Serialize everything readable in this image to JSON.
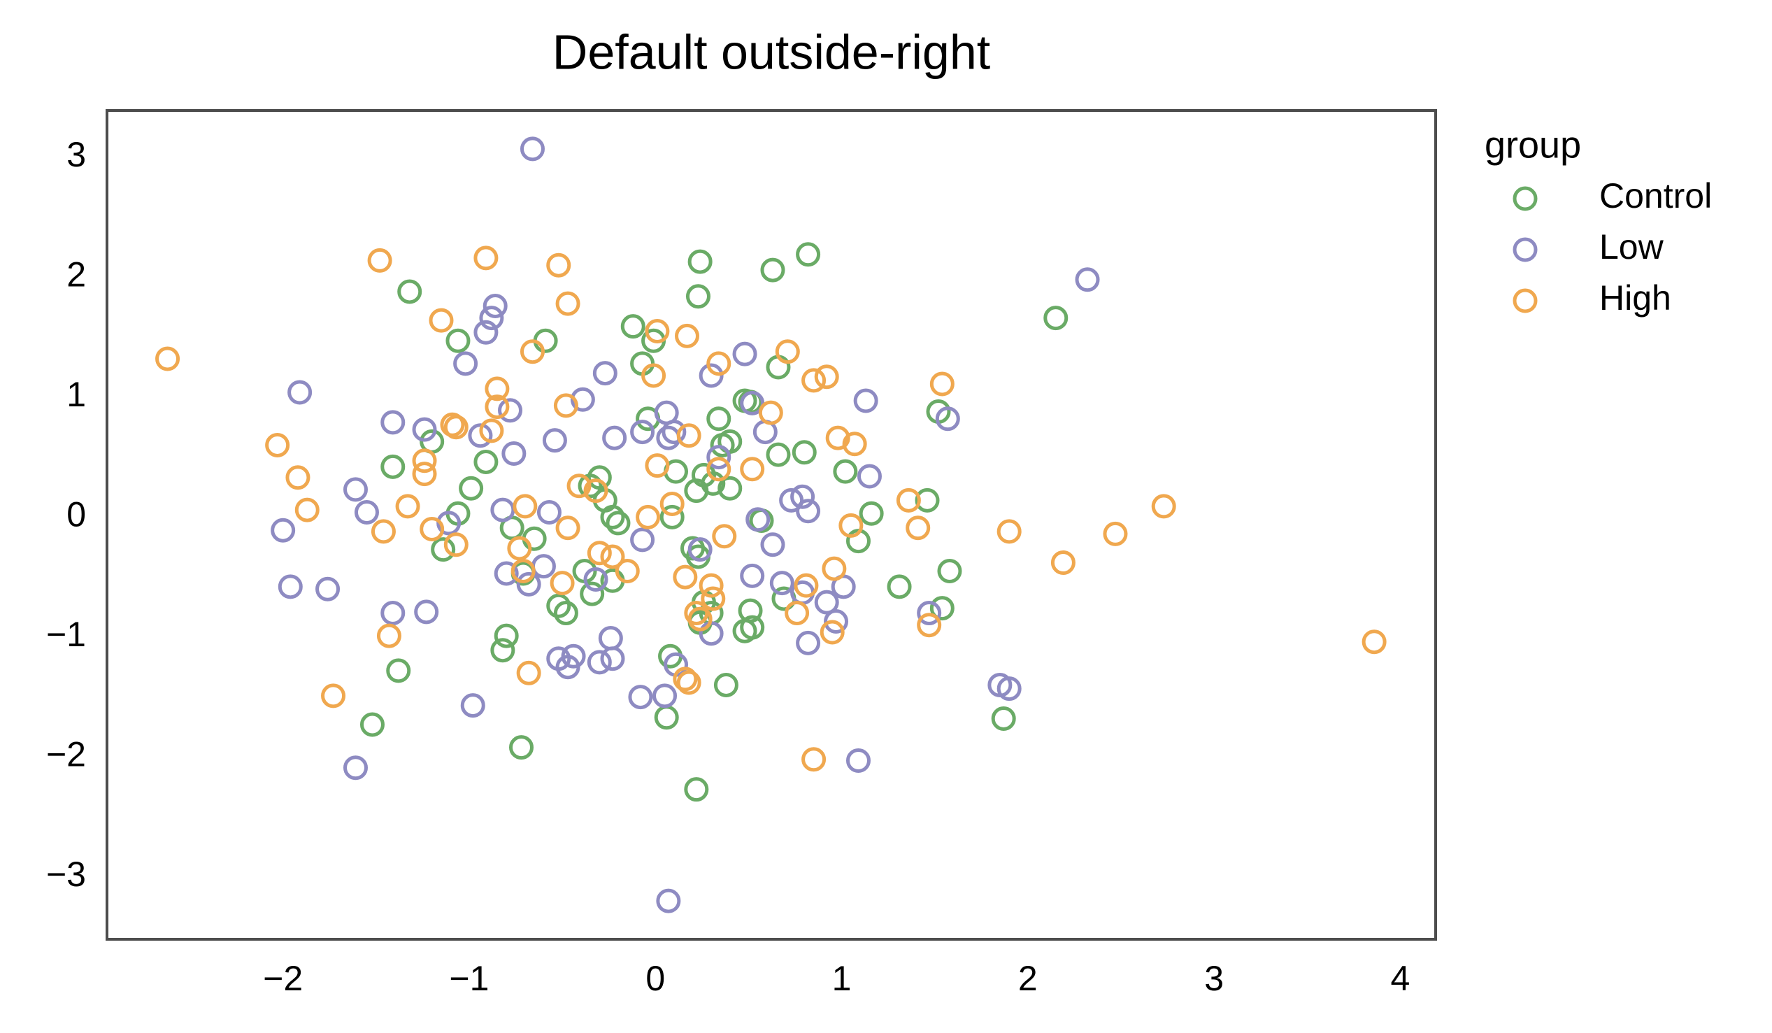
{
  "chart_data": {
    "type": "scatter",
    "title": "Default outside-right",
    "xlim": [
      -2.945,
      4.19
    ],
    "ylim": [
      -3.52,
      3.39
    ],
    "xticks": [
      {
        "value": -2,
        "label": "−2"
      },
      {
        "value": -1,
        "label": "−1"
      },
      0,
      1,
      2,
      3,
      4
    ],
    "yticks": [
      {
        "value": -3,
        "label": "−3"
      },
      {
        "value": -2,
        "label": "−2"
      },
      {
        "value": -1,
        "label": "−1"
      },
      0,
      1,
      2,
      3
    ],
    "grid": false,
    "legend_title": "group",
    "legend_loc": "outside-right",
    "series": [
      {
        "name": "Control",
        "color": "#6aab66",
        "x": [
          -1.32,
          -1.06,
          -0.59,
          -0.12,
          0.24,
          0.63,
          0.82,
          0.23,
          2.15,
          -0.07,
          -0.01,
          0.66,
          0.48,
          -0.04,
          0.34,
          0.51,
          1.52,
          -1.2,
          -1.41,
          -0.91,
          0.4,
          0.36,
          0.66,
          0.8,
          1.02,
          -0.3,
          -0.35,
          0.11,
          0.26,
          0.31,
          0.4,
          0.22,
          -0.99,
          -1.06,
          -0.27,
          -0.23,
          -0.2,
          0.57,
          1.16,
          1.46,
          -0.77,
          -0.65,
          -1.14,
          1.09,
          0.2,
          0.09,
          0.23,
          -0.38,
          -0.23,
          -0.34,
          -0.52,
          -0.48,
          -0.71,
          0.26,
          0.3,
          0.24,
          0.51,
          0.48,
          0.52,
          1.31,
          1.58,
          1.54,
          0.69,
          -0.8,
          -0.82,
          -1.38,
          0.08,
          0.38,
          0.06,
          -1.52,
          -0.72,
          1.87,
          0.22
        ],
        "y": [
          1.88,
          1.47,
          1.47,
          1.59,
          2.13,
          2.06,
          2.19,
          1.84,
          1.66,
          1.28,
          1.47,
          1.25,
          0.97,
          0.82,
          0.82,
          0.96,
          0.88,
          0.63,
          0.42,
          0.46,
          0.63,
          0.6,
          0.52,
          0.54,
          0.38,
          0.33,
          0.26,
          0.38,
          0.35,
          0.28,
          0.24,
          0.22,
          0.24,
          0.03,
          0.14,
          0,
          -0.05,
          -0.03,
          0.03,
          0.14,
          -0.09,
          -0.18,
          -0.27,
          -0.2,
          -0.26,
          0,
          -0.33,
          -0.45,
          -0.53,
          -0.64,
          -0.74,
          -0.8,
          -0.47,
          -0.71,
          -0.8,
          -0.88,
          -0.78,
          -0.95,
          -0.92,
          -0.58,
          -0.45,
          -0.76,
          -0.68,
          -0.99,
          -1.11,
          -1.28,
          -1.16,
          -1.4,
          -1.67,
          -1.73,
          -1.92,
          -1.68,
          -2.27
        ]
      },
      {
        "name": "Low",
        "color": "#8e8bc2",
        "x": [
          -0.66,
          2.32,
          -0.86,
          -0.88,
          -0.91,
          -1.02,
          -0.27,
          0.48,
          0.3,
          -1.91,
          -0.39,
          0.06,
          0.52,
          1.13,
          1.57,
          -1.41,
          -1.24,
          -0.78,
          -0.94,
          -0.54,
          -0.22,
          -0.07,
          0.07,
          0.1,
          0.59,
          -0.76,
          0.34,
          1.15,
          -1.61,
          -1.55,
          -0.82,
          -0.57,
          0.73,
          0.79,
          0.82,
          -2.0,
          -1.11,
          -0.07,
          0.55,
          0.63,
          0.24,
          -1.96,
          -1.76,
          -0.8,
          -0.68,
          -0.6,
          -0.32,
          0.52,
          0.68,
          0.92,
          1.01,
          0.79,
          -1.41,
          -1.23,
          0.97,
          1.47,
          -0.24,
          0.3,
          0.82,
          -0.52,
          -0.44,
          -0.47,
          -0.3,
          -0.23,
          0.11,
          -0.08,
          0.05,
          -0.98,
          1.85,
          1.9,
          -1.61,
          1.09,
          0.07
        ],
        "y": [
          3.07,
          1.98,
          1.76,
          1.66,
          1.54,
          1.28,
          1.2,
          1.36,
          1.18,
          1.04,
          0.98,
          0.87,
          0.95,
          0.97,
          0.82,
          0.79,
          0.73,
          0.89,
          0.68,
          0.64,
          0.66,
          0.71,
          0.66,
          0.71,
          0.71,
          0.53,
          0.5,
          0.34,
          0.23,
          0.04,
          0.06,
          0.04,
          0.14,
          0.17,
          0.05,
          -0.11,
          -0.05,
          -0.19,
          -0.02,
          -0.23,
          -0.27,
          -0.58,
          -0.6,
          -0.47,
          -0.56,
          -0.41,
          -0.52,
          -0.49,
          -0.55,
          -0.71,
          -0.58,
          -0.63,
          -0.8,
          -0.79,
          -0.87,
          -0.8,
          -1.01,
          -0.97,
          -1.05,
          -1.18,
          -1.16,
          -1.25,
          -1.21,
          -1.18,
          -1.23,
          -1.5,
          -1.49,
          -1.57,
          -1.4,
          -1.43,
          -2.09,
          -2.03,
          -3.2
        ]
      },
      {
        "name": "High",
        "color": "#f0a84f",
        "x": [
          -2.62,
          -1.48,
          -0.91,
          -0.52,
          -0.47,
          -1.15,
          -0.66,
          0.01,
          0.17,
          0.71,
          0.34,
          -0.01,
          0.85,
          0.92,
          1.54,
          -0.85,
          -0.85,
          -0.48,
          0.62,
          -1.09,
          -1.07,
          -0.88,
          0.18,
          0.98,
          1.07,
          -2.03,
          -1.24,
          -1.92,
          -1.24,
          0.01,
          0.34,
          0.52,
          -0.41,
          -0.32,
          -1.33,
          -1.87,
          -0.7,
          0.09,
          1.36,
          2.73,
          -0.04,
          -1.46,
          -1.2,
          -0.47,
          0.37,
          1.05,
          1.41,
          1.9,
          2.47,
          -1.07,
          -0.73,
          -0.3,
          -0.23,
          2.19,
          -0.71,
          -0.15,
          0.96,
          -0.5,
          0.16,
          0.3,
          0.81,
          0.31,
          0.76,
          0.22,
          0.24,
          -1.43,
          0.95,
          1.47,
          3.86,
          -0.68,
          0.16,
          0.18,
          -1.73,
          0.85
        ],
        "y": [
          1.32,
          2.14,
          2.16,
          2.1,
          1.78,
          1.64,
          1.38,
          1.55,
          1.51,
          1.38,
          1.28,
          1.18,
          1.14,
          1.17,
          1.11,
          1.07,
          0.92,
          0.93,
          0.87,
          0.77,
          0.75,
          0.72,
          0.68,
          0.66,
          0.61,
          0.6,
          0.47,
          0.33,
          0.36,
          0.43,
          0.4,
          0.4,
          0.26,
          0.22,
          0.09,
          0.06,
          0.09,
          0.11,
          0.14,
          0.09,
          0,
          -0.12,
          -0.1,
          -0.09,
          -0.16,
          -0.07,
          -0.09,
          -0.12,
          -0.14,
          -0.23,
          -0.26,
          -0.3,
          -0.33,
          -0.38,
          -0.45,
          -0.45,
          -0.43,
          -0.55,
          -0.5,
          -0.57,
          -0.57,
          -0.68,
          -0.8,
          -0.8,
          -0.85,
          -0.99,
          -0.96,
          -0.9,
          -1.04,
          -1.3,
          -1.35,
          -1.38,
          -1.49,
          -2.02
        ]
      }
    ]
  }
}
